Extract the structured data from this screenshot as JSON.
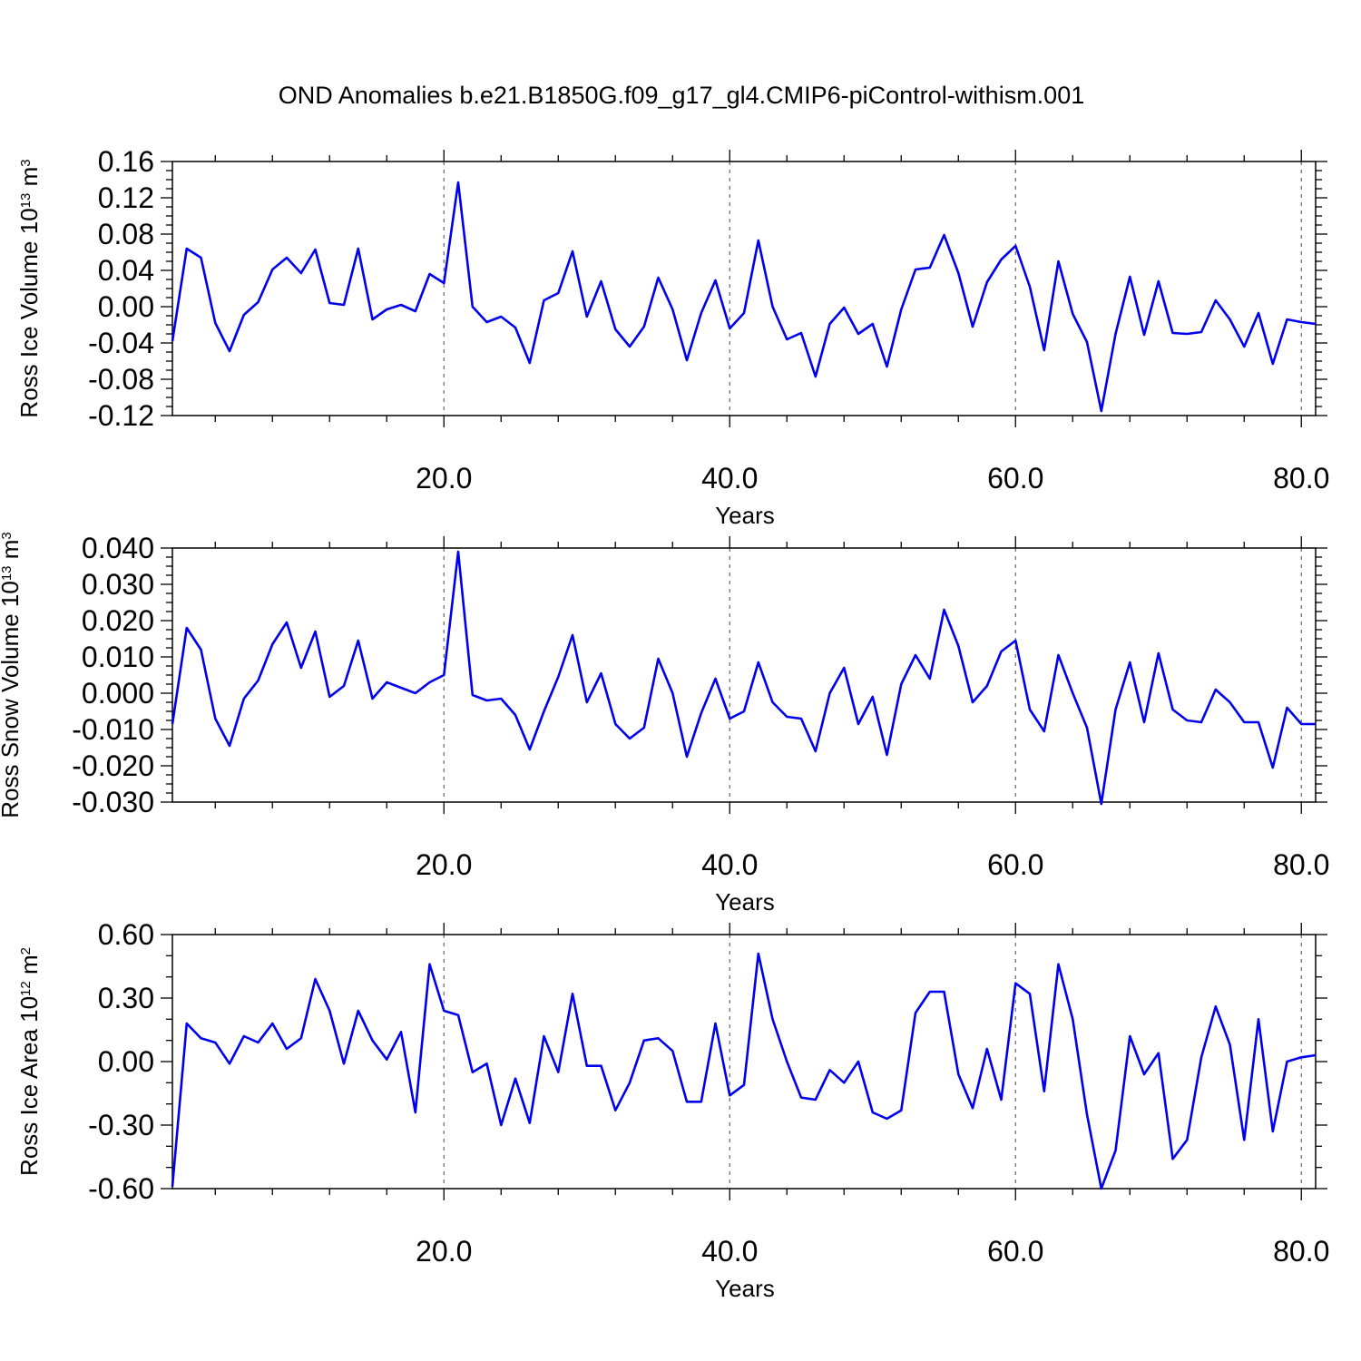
{
  "title": "OND Anomalies b.e21.B1850G.f09_g17_gl4.CMIP6-piControl-withism.001",
  "colors": {
    "series": "#0000ee",
    "grid": "#666666",
    "axes": "#000000"
  },
  "chart_data": [
    {
      "type": "line",
      "title": "",
      "xlabel": "Years",
      "ylabel": "Ross Ice Volume 10",
      "ylabel_exp": "13",
      "ylabel_unit": " m",
      "ylabel_unit_exp": "3",
      "xlim": [
        1,
        81
      ],
      "ylim": [
        -0.12,
        0.16
      ],
      "xticks": [
        20,
        40,
        60,
        80
      ],
      "xtick_labels": [
        "20.0",
        "40.0",
        "60.0",
        "80.0"
      ],
      "yticks": [
        -0.12,
        -0.08,
        -0.04,
        0.0,
        0.04,
        0.08,
        0.12,
        0.16
      ],
      "ytick_labels": [
        "-0.12",
        "-0.08",
        "-0.04",
        "0.00",
        "0.04",
        "0.08",
        "0.12",
        "0.16"
      ],
      "ytick_minor_step": 0.01,
      "xtick_minor_step": 4,
      "grid": "vertical-dashed",
      "series": [
        {
          "x": [
            1,
            2,
            3,
            4,
            5,
            6,
            7,
            8,
            9,
            10,
            11,
            12,
            13,
            14,
            15,
            16,
            17,
            18,
            19,
            20,
            21,
            22,
            23,
            24,
            25,
            26,
            27,
            28,
            29,
            30,
            31,
            32,
            33,
            34,
            35,
            36,
            37,
            38,
            39,
            40,
            41,
            42,
            43,
            44,
            45,
            46,
            47,
            48,
            49,
            50,
            51,
            52,
            53,
            54,
            55,
            56,
            57,
            58,
            59,
            60,
            61,
            62,
            63,
            64,
            65,
            66,
            67,
            68,
            69,
            70,
            71,
            72,
            73,
            74,
            75,
            76,
            77,
            78,
            79,
            80,
            81
          ],
          "values": [
            -0.038,
            0.064,
            0.054,
            -0.018,
            -0.049,
            -0.009,
            0.005,
            0.041,
            0.054,
            0.037,
            0.063,
            0.004,
            0.002,
            0.064,
            -0.014,
            -0.003,
            0.002,
            -0.005,
            0.036,
            0.026,
            0.137,
            0.0,
            -0.017,
            -0.011,
            -0.023,
            -0.062,
            0.007,
            0.015,
            0.061,
            -0.011,
            0.028,
            -0.025,
            -0.044,
            -0.022,
            0.032,
            -0.003,
            -0.059,
            -0.007,
            0.029,
            -0.024,
            -0.007,
            0.073,
            0.0,
            -0.036,
            -0.029,
            -0.077,
            -0.019,
            -0.001,
            -0.03,
            -0.019,
            -0.066,
            -0.003,
            0.041,
            0.043,
            0.079,
            0.037,
            -0.022,
            0.027,
            0.052,
            0.067,
            0.022,
            -0.048,
            0.05,
            -0.008,
            -0.039,
            -0.115,
            -0.03,
            0.033,
            -0.031,
            0.028,
            -0.029,
            -0.03,
            -0.028,
            0.007,
            -0.014,
            -0.044,
            -0.007,
            -0.063,
            -0.014,
            -0.017,
            -0.019
          ]
        }
      ]
    },
    {
      "type": "line",
      "title": "",
      "xlabel": "Years",
      "ylabel": "Ross Snow Volume 10",
      "ylabel_exp": "13",
      "ylabel_unit": " m",
      "ylabel_unit_exp": "3",
      "xlim": [
        1,
        81
      ],
      "ylim": [
        -0.03,
        0.04
      ],
      "xticks": [
        20,
        40,
        60,
        80
      ],
      "xtick_labels": [
        "20.0",
        "40.0",
        "60.0",
        "80.0"
      ],
      "yticks": [
        -0.03,
        -0.02,
        -0.01,
        0.0,
        0.01,
        0.02,
        0.03,
        0.04
      ],
      "ytick_labels": [
        "-0.030",
        "-0.020",
        "-0.010",
        "0.000",
        "0.010",
        "0.020",
        "0.030",
        "0.040"
      ],
      "ytick_minor_step": 0.0025,
      "xtick_minor_step": 4,
      "grid": "vertical-dashed",
      "series": [
        {
          "x": [
            1,
            2,
            3,
            4,
            5,
            6,
            7,
            8,
            9,
            10,
            11,
            12,
            13,
            14,
            15,
            16,
            17,
            18,
            19,
            20,
            21,
            22,
            23,
            24,
            25,
            26,
            27,
            28,
            29,
            30,
            31,
            32,
            33,
            34,
            35,
            36,
            37,
            38,
            39,
            40,
            41,
            42,
            43,
            44,
            45,
            46,
            47,
            48,
            49,
            50,
            51,
            52,
            53,
            54,
            55,
            56,
            57,
            58,
            59,
            60,
            61,
            62,
            63,
            64,
            65,
            66,
            67,
            68,
            69,
            70,
            71,
            72,
            73,
            74,
            75,
            76,
            77,
            78,
            79,
            80,
            81
          ],
          "values": [
            -0.0085,
            0.018,
            0.012,
            -0.007,
            -0.0145,
            -0.0015,
            0.0035,
            0.0135,
            0.0195,
            0.007,
            0.017,
            -0.001,
            0.002,
            0.0145,
            -0.0015,
            0.003,
            0.0015,
            0.0,
            0.003,
            0.005,
            0.039,
            -0.0005,
            -0.002,
            -0.0015,
            -0.006,
            -0.0155,
            -0.005,
            0.0045,
            0.016,
            -0.0025,
            0.0055,
            -0.0085,
            -0.0125,
            -0.0095,
            0.0095,
            0.0,
            -0.0175,
            -0.0055,
            0.004,
            -0.007,
            -0.005,
            0.0085,
            -0.0025,
            -0.0065,
            -0.007,
            -0.016,
            0.0,
            0.007,
            -0.0085,
            -0.001,
            -0.017,
            0.0025,
            0.0105,
            0.004,
            0.023,
            0.013,
            -0.0025,
            0.002,
            0.0115,
            0.0145,
            -0.0045,
            -0.0105,
            0.0105,
            0.0,
            -0.0095,
            -0.0305,
            -0.0045,
            0.0085,
            -0.008,
            0.011,
            -0.0045,
            -0.0075,
            -0.008,
            0.001,
            -0.0025,
            -0.008,
            -0.008,
            -0.0205,
            -0.004,
            -0.0085,
            -0.0085
          ]
        }
      ]
    },
    {
      "type": "line",
      "title": "",
      "xlabel": "Years",
      "ylabel": "Ross Ice Area 10",
      "ylabel_exp": "12",
      "ylabel_unit": " m",
      "ylabel_unit_exp": "2",
      "xlim": [
        1,
        81
      ],
      "ylim": [
        -0.6,
        0.6
      ],
      "xticks": [
        20,
        40,
        60,
        80
      ],
      "xtick_labels": [
        "20.0",
        "40.0",
        "60.0",
        "80.0"
      ],
      "yticks": [
        -0.6,
        -0.3,
        0.0,
        0.3,
        0.6
      ],
      "ytick_labels": [
        "-0.60",
        "-0.30",
        "0.00",
        "0.30",
        "0.60"
      ],
      "ytick_minor_step": 0.1,
      "xtick_minor_step": 4,
      "grid": "vertical-dashed",
      "series": [
        {
          "x": [
            1,
            2,
            3,
            4,
            5,
            6,
            7,
            8,
            9,
            10,
            11,
            12,
            13,
            14,
            15,
            16,
            17,
            18,
            19,
            20,
            21,
            22,
            23,
            24,
            25,
            26,
            27,
            28,
            29,
            30,
            31,
            32,
            33,
            34,
            35,
            36,
            37,
            38,
            39,
            40,
            41,
            42,
            43,
            44,
            45,
            46,
            47,
            48,
            49,
            50,
            51,
            52,
            53,
            54,
            55,
            56,
            57,
            58,
            59,
            60,
            61,
            62,
            63,
            64,
            65,
            66,
            67,
            68,
            69,
            70,
            71,
            72,
            73,
            74,
            75,
            76,
            77,
            78,
            79,
            80,
            81
          ],
          "values": [
            -0.59,
            0.18,
            0.11,
            0.09,
            -0.01,
            0.12,
            0.09,
            0.18,
            0.06,
            0.11,
            0.39,
            0.24,
            -0.01,
            0.24,
            0.1,
            0.01,
            0.14,
            -0.24,
            0.46,
            0.24,
            0.22,
            -0.05,
            -0.01,
            -0.3,
            -0.08,
            -0.29,
            0.12,
            -0.05,
            0.32,
            -0.02,
            -0.02,
            -0.23,
            -0.1,
            0.1,
            0.11,
            0.05,
            -0.19,
            -0.19,
            0.18,
            -0.16,
            -0.11,
            0.51,
            0.2,
            0.0,
            -0.17,
            -0.18,
            -0.04,
            -0.1,
            0.0,
            -0.24,
            -0.27,
            -0.23,
            0.23,
            0.33,
            0.33,
            -0.06,
            -0.22,
            0.06,
            -0.18,
            0.37,
            0.32,
            -0.14,
            0.46,
            0.2,
            -0.25,
            -0.6,
            -0.42,
            0.12,
            -0.06,
            0.04,
            -0.46,
            -0.37,
            0.02,
            0.26,
            0.08,
            -0.37,
            0.2,
            -0.33,
            0.0,
            0.02,
            0.03
          ]
        }
      ]
    }
  ]
}
